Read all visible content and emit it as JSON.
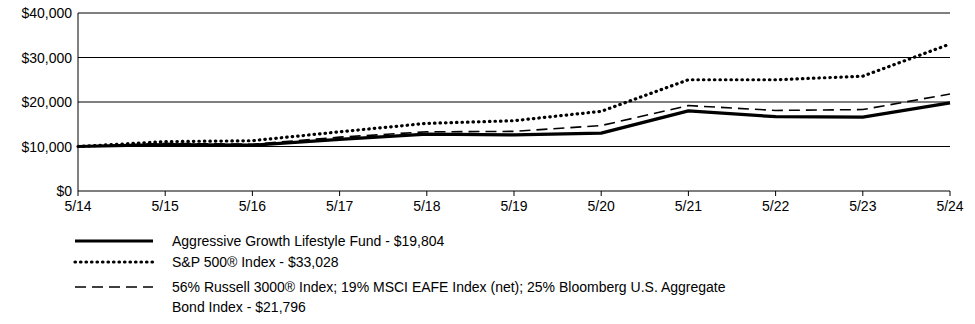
{
  "chart_data": {
    "type": "line",
    "categories": [
      "5/14",
      "5/15",
      "5/16",
      "5/17",
      "5/18",
      "5/19",
      "5/20",
      "5/21",
      "5/22",
      "5/23",
      "5/24"
    ],
    "series": [
      {
        "name": "Aggressive Growth Lifestyle Fund - $19,804",
        "color": "#000000",
        "line_style": "solid",
        "values": [
          10000,
          10400,
          10300,
          11600,
          12800,
          12600,
          13000,
          18000,
          16700,
          16600,
          19804
        ]
      },
      {
        "name": "S&P 500® Index - $33,028",
        "color": "#000000",
        "line_style": "dotted",
        "values": [
          10000,
          11100,
          11300,
          13300,
          15200,
          15800,
          17900,
          25000,
          25000,
          25800,
          33028
        ]
      },
      {
        "name": "56% Russell 3000® Index; 19% MSCI EAFE Index (net); 25% Bloomberg U.S. Aggregate Bond Index - $21,796",
        "color": "#000000",
        "line_style": "dashed",
        "values": [
          10000,
          10700,
          10500,
          12100,
          13300,
          13400,
          14700,
          19200,
          18100,
          18300,
          21796
        ]
      }
    ],
    "ylim": [
      0,
      40000
    ],
    "yticks": [
      {
        "value": 0,
        "label": "$0"
      },
      {
        "value": 10000,
        "label": "$10,000"
      },
      {
        "value": 20000,
        "label": "$20,000"
      },
      {
        "value": 30000,
        "label": "$30,000"
      },
      {
        "value": 40000,
        "label": "$40,000"
      }
    ],
    "grid": true
  }
}
